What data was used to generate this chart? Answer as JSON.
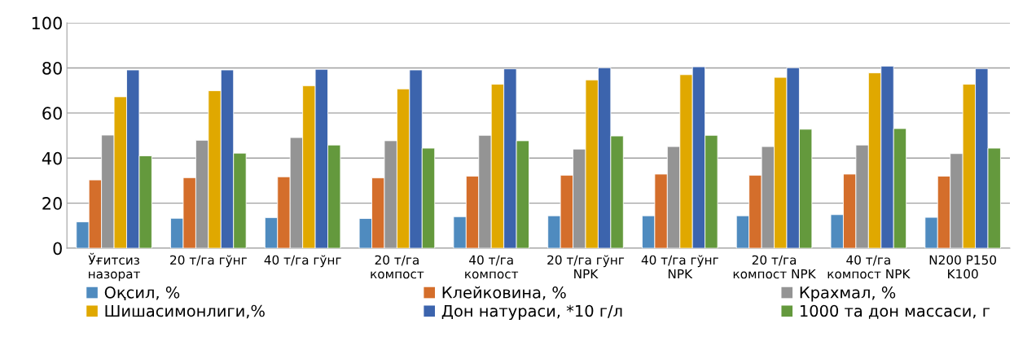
{
  "chart_data": {
    "type": "bar",
    "categories": [
      "Ўғитсиз\nназорат",
      "20 т/га гўнг",
      "40 т/га гўнг",
      "20 т/га\nкомпост",
      "40 т/га\nкомпост",
      "20 т/га гўнг\nNPK",
      "40 т/га гўнг\nNPK",
      "20 т/га\nкомпост NPK",
      "40 т/га\nкомпост NPK",
      "N200 P150\nK100"
    ],
    "series": [
      {
        "name": "Оқсил, %",
        "color": "#4f8bbf",
        "values": [
          11.7,
          13.3,
          13.6,
          13.2,
          14.0,
          14.4,
          14.4,
          14.4,
          14.9,
          13.7
        ]
      },
      {
        "name": "Клейковина, %",
        "color": "#d46e2b",
        "values": [
          30.3,
          31.3,
          31.7,
          31.2,
          32.0,
          32.4,
          32.9,
          32.4,
          32.9,
          32.0
        ]
      },
      {
        "name": "Крахмал, %",
        "color": "#949494",
        "values": [
          50.2,
          47.9,
          49.1,
          47.7,
          50.1,
          44.0,
          45.1,
          45.1,
          45.8,
          42.0
        ]
      },
      {
        "name": "Шишасимонлиги,%",
        "color": "#e0a800",
        "values": [
          67.2,
          69.9,
          72.1,
          70.7,
          72.8,
          74.7,
          77.0,
          75.8,
          77.8,
          72.8
        ]
      },
      {
        "name": "Дон натураси, *10 г/л",
        "color": "#3c64ad",
        "values": [
          79.1,
          79.1,
          79.4,
          79.1,
          79.6,
          80.1,
          80.5,
          80.1,
          80.8,
          79.7
        ]
      },
      {
        "name": "1000 та дон массаси, г",
        "color": "#64993d",
        "values": [
          41.0,
          42.2,
          45.8,
          44.4,
          47.7,
          49.8,
          50.1,
          52.8,
          53.1,
          44.4
        ]
      }
    ],
    "ylim": [
      0,
      100
    ],
    "yticks": [
      0,
      20,
      40,
      60,
      80,
      100
    ],
    "grid": "y",
    "legend": "bottom"
  }
}
